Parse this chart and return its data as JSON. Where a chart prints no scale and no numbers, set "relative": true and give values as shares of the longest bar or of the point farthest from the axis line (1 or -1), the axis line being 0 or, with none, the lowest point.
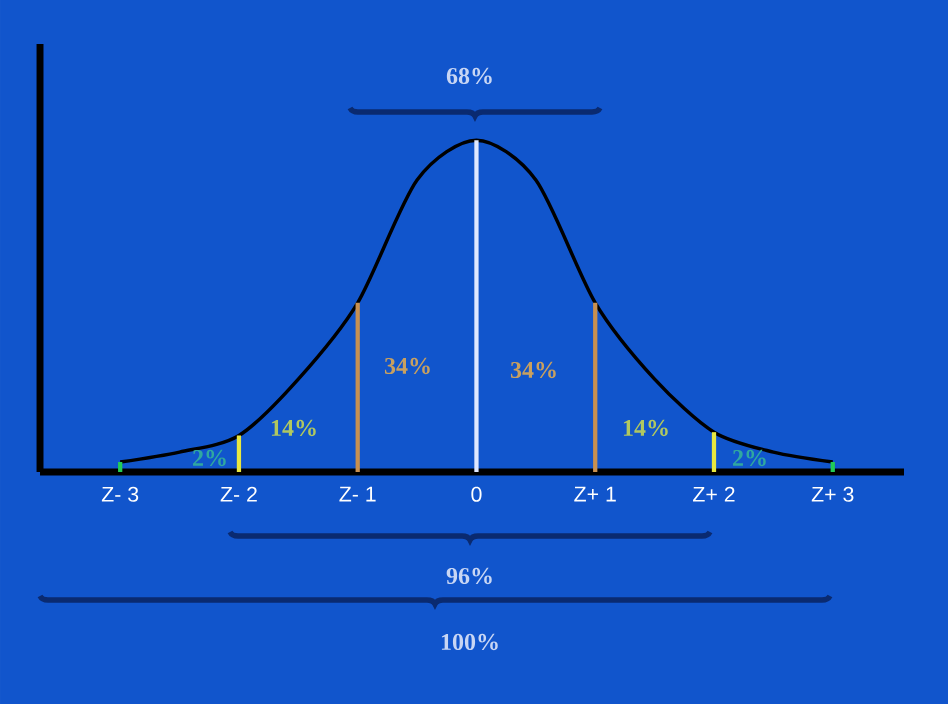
{
  "chart_data": {
    "type": "line",
    "relative": true,
    "categories": [
      "Z- 3",
      null,
      "Z- 2",
      null,
      "Z- 1",
      null,
      "0",
      null,
      "Z+ 1",
      null,
      "Z+ 2",
      null,
      "Z+ 3"
    ],
    "series": [
      {
        "color": "#000000",
        "values": [
          0.03,
          0.06,
          0.11,
          0.28,
          0.51,
          0.88,
          1,
          0.88,
          0.51,
          0.28,
          0.12,
          0.06,
          0.03
        ]
      },
      {
        "type": "bar",
        "values": [
          0.03,
          null,
          0.11,
          null,
          0.51,
          null,
          1,
          null,
          0.51,
          null,
          0.12,
          null,
          0.03
        ],
        "colors": [
          "#22cc55",
          null,
          "#e8e840",
          null,
          "#c89050",
          null,
          "#e0e8ff",
          null,
          "#c89050",
          null,
          "#e8e840",
          null,
          "#22cc55"
        ]
      }
    ],
    "annotations": [
      "34%",
      "34%",
      "14%",
      "14%",
      "2%",
      "2%",
      "68%",
      "96%",
      "100%"
    ]
  }
}
